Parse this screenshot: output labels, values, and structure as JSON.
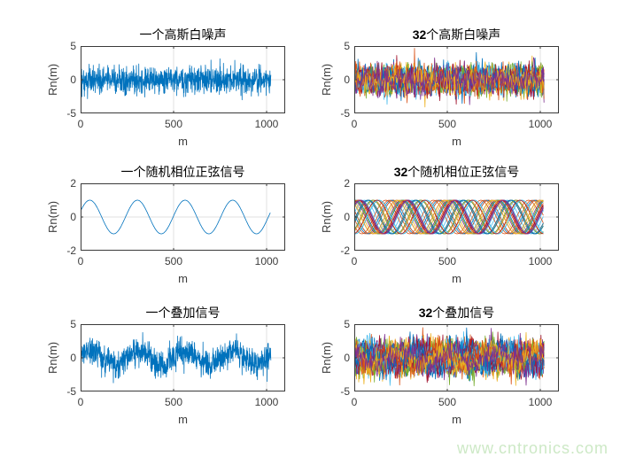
{
  "figure": {
    "background": "#ffffff",
    "watermark": {
      "text": "www.cntronics.com",
      "color": "#cde9c6"
    }
  },
  "palette": {
    "single_line_color": "#0072BD",
    "color_order": [
      "#0072BD",
      "#D95319",
      "#EDB120",
      "#7E2F8E",
      "#77AC30",
      "#4DBEEE",
      "#A2142F"
    ],
    "axis_color": "#3a3a3a",
    "grid_color": "#e2e2e2",
    "tick_label_color": "#3d3d3d"
  },
  "chart_data": [
    {
      "type": "line",
      "title_bold": "",
      "title_rest": "一个高斯白噪声",
      "title_full": "一个高斯白噪声",
      "xlabel": "m",
      "ylabel": "Rn(m)",
      "xlim": [
        0,
        1100
      ],
      "ylim": [
        -5,
        5
      ],
      "xticks": [
        0,
        500,
        1000
      ],
      "yticks": [
        5,
        0,
        -5
      ],
      "xtick_labels": [
        "0",
        "500",
        "1000"
      ],
      "ytick_labels": [
        "5",
        "0",
        "-5"
      ],
      "grid": true,
      "n_samples": 1024,
      "series_count": 1,
      "signal": {
        "kind": "gaussian_white_noise",
        "sigma": 1
      },
      "line_color": "#0072BD"
    },
    {
      "type": "line",
      "title_bold": "32",
      "title_rest": "个高斯白噪声",
      "title_full": "32个高斯白噪声",
      "xlabel": "m",
      "ylabel": "Rn(m)",
      "xlim": [
        0,
        1100
      ],
      "ylim": [
        -5,
        5
      ],
      "xticks": [
        0,
        500,
        1000
      ],
      "yticks": [
        5,
        0,
        -5
      ],
      "xtick_labels": [
        "0",
        "500",
        "1000"
      ],
      "ytick_labels": [
        "5",
        "0",
        "-5"
      ],
      "grid": true,
      "n_samples": 1024,
      "series_count": 32,
      "signal": {
        "kind": "gaussian_white_noise",
        "sigma": 1
      }
    },
    {
      "type": "line",
      "title_bold": "",
      "title_rest": "一个随机相位正弦信号",
      "title_full": "一个随机相位正弦信号",
      "xlabel": "m",
      "ylabel": "Rn(m)",
      "xlim": [
        0,
        1100
      ],
      "ylim": [
        -2,
        2
      ],
      "xticks": [
        0,
        500,
        1000
      ],
      "yticks": [
        2,
        0,
        -2
      ],
      "xtick_labels": [
        "0",
        "500",
        "1000"
      ],
      "ytick_labels": [
        "2",
        "0",
        "-2"
      ],
      "grid": true,
      "n_samples": 1024,
      "series_count": 1,
      "signal": {
        "kind": "random_phase_sine",
        "amplitude": 1,
        "period_samples": 256,
        "phase_rad": 0.36
      },
      "line_color": "#0072BD"
    },
    {
      "type": "line",
      "title_bold": "32",
      "title_rest": "个随机相位正弦信号",
      "title_full": "32个随机相位正弦信号",
      "xlabel": "m",
      "ylabel": "Rn(m)",
      "xlim": [
        0,
        1100
      ],
      "ylim": [
        -2,
        2
      ],
      "xticks": [
        0,
        500,
        1000
      ],
      "yticks": [
        2,
        0,
        -2
      ],
      "xtick_labels": [
        "0",
        "500",
        "1000"
      ],
      "ytick_labels": [
        "2",
        "0",
        "-2"
      ],
      "grid": true,
      "n_samples": 1024,
      "series_count": 32,
      "signal": {
        "kind": "random_phase_sine",
        "amplitude": 1,
        "period_samples": 256
      }
    },
    {
      "type": "line",
      "title_bold": "",
      "title_rest": "一个叠加信号",
      "title_full": "一个叠加信号",
      "xlabel": "m",
      "ylabel": "Rn(m)",
      "xlim": [
        0,
        1100
      ],
      "ylim": [
        -5,
        5
      ],
      "xticks": [
        0,
        500,
        1000
      ],
      "yticks": [
        5,
        0,
        -5
      ],
      "xtick_labels": [
        "0",
        "500",
        "1000"
      ],
      "ytick_labels": [
        "5",
        "0",
        "-5"
      ],
      "grid": true,
      "n_samples": 1024,
      "series_count": 1,
      "signal": {
        "kind": "sine_plus_noise",
        "amplitude": 1,
        "period_samples": 256,
        "sigma": 1,
        "phase_rad": 0.36
      },
      "line_color": "#0072BD"
    },
    {
      "type": "line",
      "title_bold": "32",
      "title_rest": "个叠加信号",
      "title_full": "32个叠加信号",
      "xlabel": "m",
      "ylabel": "Rn(m)",
      "xlim": [
        0,
        1100
      ],
      "ylim": [
        -5,
        5
      ],
      "xticks": [
        0,
        500,
        1000
      ],
      "yticks": [
        5,
        0,
        -5
      ],
      "xtick_labels": [
        "0",
        "500",
        "1000"
      ],
      "ytick_labels": [
        "5",
        "0",
        "-5"
      ],
      "grid": true,
      "n_samples": 1024,
      "series_count": 32,
      "signal": {
        "kind": "sine_plus_noise",
        "amplitude": 1,
        "period_samples": 256,
        "sigma": 1
      }
    }
  ]
}
